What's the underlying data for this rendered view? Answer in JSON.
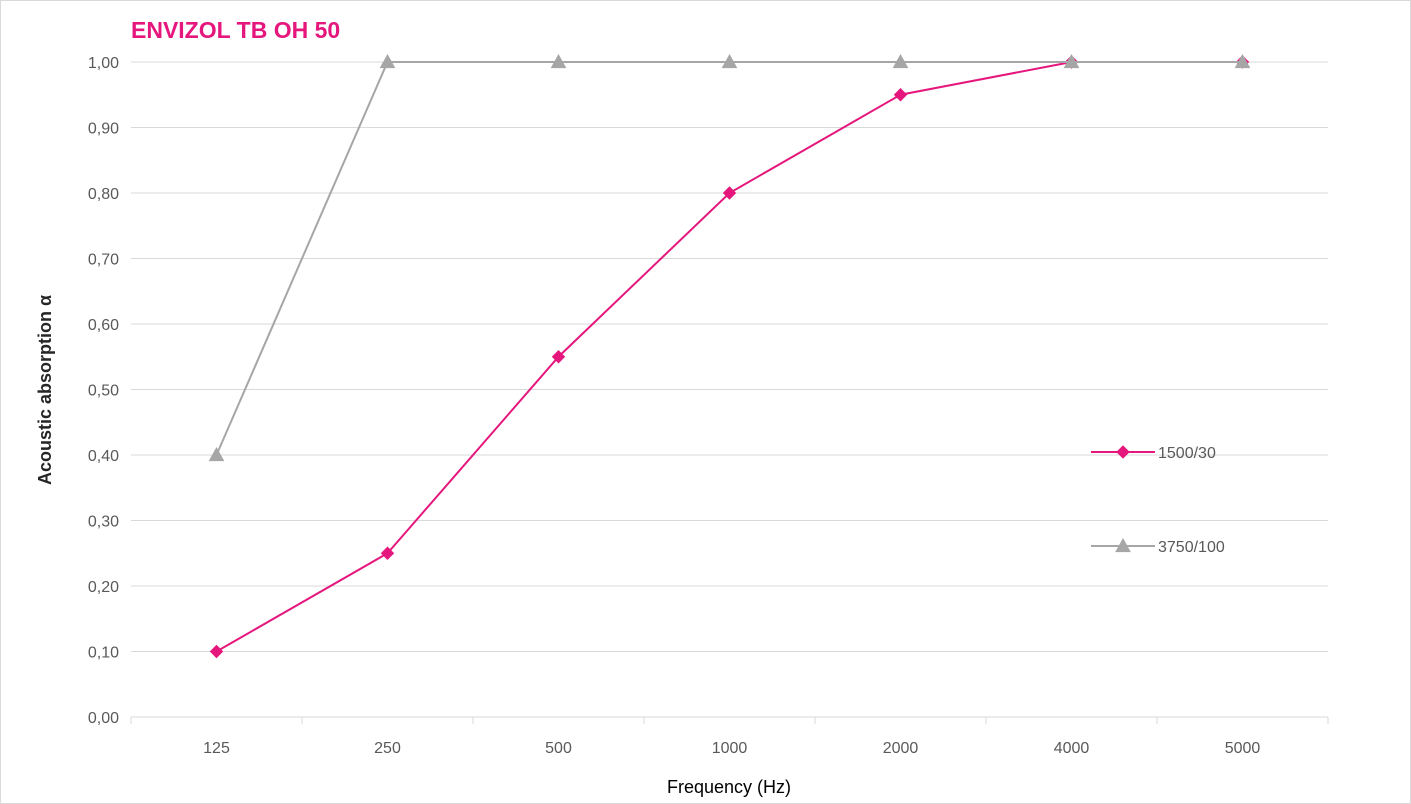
{
  "chart_data": {
    "type": "line",
    "title": "ENVIZOL TB OH 50",
    "title_color": "#e5177d",
    "xlabel": "Frequency (Hz)",
    "ylabel": "Acoustic absorption α",
    "categories": [
      "125",
      "250",
      "500",
      "1000",
      "2000",
      "4000",
      "5000"
    ],
    "y_ticks": [
      "0,00",
      "0,10",
      "0,20",
      "0,30",
      "0,40",
      "0,50",
      "0,60",
      "0,70",
      "0,80",
      "0,90",
      "1,00"
    ],
    "ylim": [
      0,
      1
    ],
    "y_step": 0.1,
    "grid": true,
    "legend_position": "right",
    "series": [
      {
        "name": "1500/30",
        "values": [
          0.1,
          0.25,
          0.55,
          0.8,
          0.95,
          1.0,
          1.0
        ],
        "color": "#e5177d",
        "marker": "diamond"
      },
      {
        "name": "3750/100",
        "values": [
          0.4,
          1.0,
          1.0,
          1.0,
          1.0,
          1.0,
          1.0
        ],
        "color": "#a6a6a6",
        "marker": "triangle"
      }
    ]
  }
}
